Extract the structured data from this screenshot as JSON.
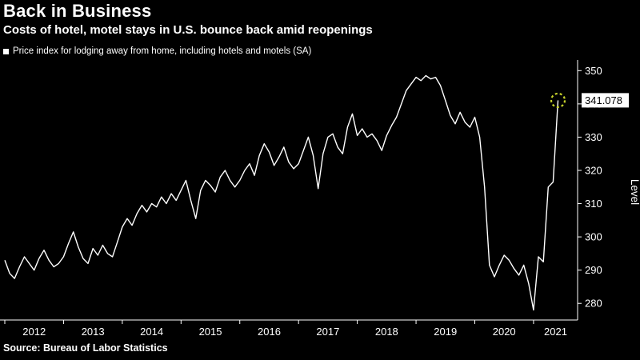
{
  "header": {
    "title": "Back in Business",
    "subtitle": "Costs of hotel, motel stays in U.S. bounce back amid reopenings"
  },
  "legend": {
    "label": "Price index for lodging away from home, including hotels and motels (SA)"
  },
  "footer": {
    "source": "Source: Bureau of Labor Statistics"
  },
  "colors": {
    "background": "#000000",
    "text": "#ffffff",
    "line": "#ffffff",
    "axis": "#ffffff",
    "highlight": "#c7d22b",
    "callout_bg": "#ffffff",
    "callout_text": "#000000"
  },
  "chart_data": {
    "type": "line",
    "title": "Back in Business",
    "subtitle": "Costs of hotel, motel stays in U.S. bounce back amid reopenings",
    "series_name": "Price index for lodging away from home, including hotels and motels (SA)",
    "ylabel": "Level",
    "ylim": [
      275,
      352
    ],
    "yticks": [
      280,
      290,
      300,
      310,
      320,
      330,
      340,
      350
    ],
    "xticks": [
      2012,
      2013,
      2014,
      2015,
      2016,
      2017,
      2018,
      2019,
      2020,
      2021
    ],
    "xdomain": [
      2012,
      2021.75
    ],
    "frequency": "monthly",
    "start": "2012-01",
    "end": "2021-06",
    "last_value": 341.078,
    "last_value_label": "341.078",
    "grid": false,
    "legend_position": "top-left",
    "values": [
      293,
      289,
      287.5,
      291,
      294,
      292,
      290,
      293.5,
      296,
      293,
      291,
      292,
      294,
      298,
      301.5,
      297,
      293.5,
      292,
      296.5,
      294.5,
      297.5,
      295,
      294,
      298.5,
      303,
      305.5,
      303.5,
      307,
      309.5,
      307.5,
      310,
      309,
      312,
      310,
      313,
      311,
      314,
      317,
      311,
      305.5,
      314,
      317,
      315.5,
      313.5,
      318,
      320,
      317,
      315,
      317,
      320,
      322,
      318.5,
      324.5,
      328,
      325.5,
      321.5,
      324,
      327,
      322.5,
      320.5,
      322,
      326,
      330,
      324.5,
      314.5,
      325,
      330,
      331,
      327,
      325,
      333,
      337,
      330.5,
      332.5,
      330,
      331,
      329,
      326,
      330.5,
      333.5,
      336,
      340,
      344,
      346,
      348,
      347,
      348.5,
      347.5,
      348,
      345.5,
      341,
      336.5,
      334,
      337.5,
      334.5,
      333,
      336,
      330,
      315,
      291.5,
      288,
      291.5,
      294.5,
      293,
      290.5,
      288.5,
      291.5,
      286,
      278,
      294,
      292.5,
      315,
      316.5,
      341.078
    ]
  }
}
